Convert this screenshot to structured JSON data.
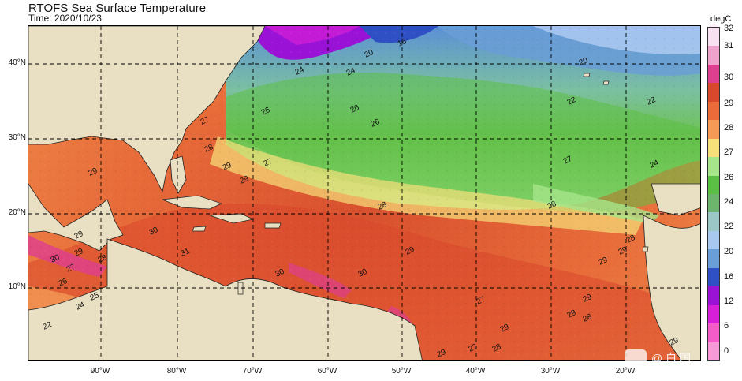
{
  "header": {
    "title": "RTOFS Sea Surface Temperature",
    "subtitle": "Time: 2020/10/23"
  },
  "axes": {
    "lat_labels": [
      "40°N",
      "30°N",
      "20°N",
      "10°N"
    ],
    "lon_labels": [
      "90°W",
      "80°W",
      "70°W",
      "60°W",
      "50°W",
      "40°W",
      "30°W",
      "20°W"
    ]
  },
  "colorbar": {
    "unit": "degC",
    "labels": [
      "32",
      "31",
      "30",
      "29",
      "28",
      "27",
      "26",
      "24",
      "22",
      "20",
      "16",
      "12",
      "6",
      "0"
    ],
    "colors": [
      "#f8e1f1",
      "#efa2cc",
      "#de3f8f",
      "#d9472c",
      "#ec6b3a",
      "#f49a56",
      "#f7e07a",
      "#a6e58a",
      "#5cbf45",
      "#6db46d",
      "#9cc7c7",
      "#a8c8f0",
      "#6a9ed6",
      "#2f4fc4",
      "#9a12d6",
      "#d61fd6",
      "#f35cc9",
      "#f59ad6"
    ]
  },
  "map": {
    "land_color": "#e9dfc2",
    "contour_labels": [
      "20",
      "16",
      "20",
      "24",
      "24",
      "22",
      "22",
      "24",
      "26",
      "26",
      "26",
      "27",
      "27",
      "27",
      "28",
      "28",
      "28",
      "29",
      "29",
      "29",
      "29",
      "29",
      "29",
      "29",
      "30",
      "30",
      "30",
      "31",
      "30",
      "29",
      "28",
      "27",
      "26",
      "25",
      "24",
      "22",
      "28",
      "29",
      "29",
      "29",
      "28",
      "27",
      "27",
      "28",
      "29",
      "29"
    ]
  },
  "watermark": {
    "text": "@ 白 国"
  }
}
